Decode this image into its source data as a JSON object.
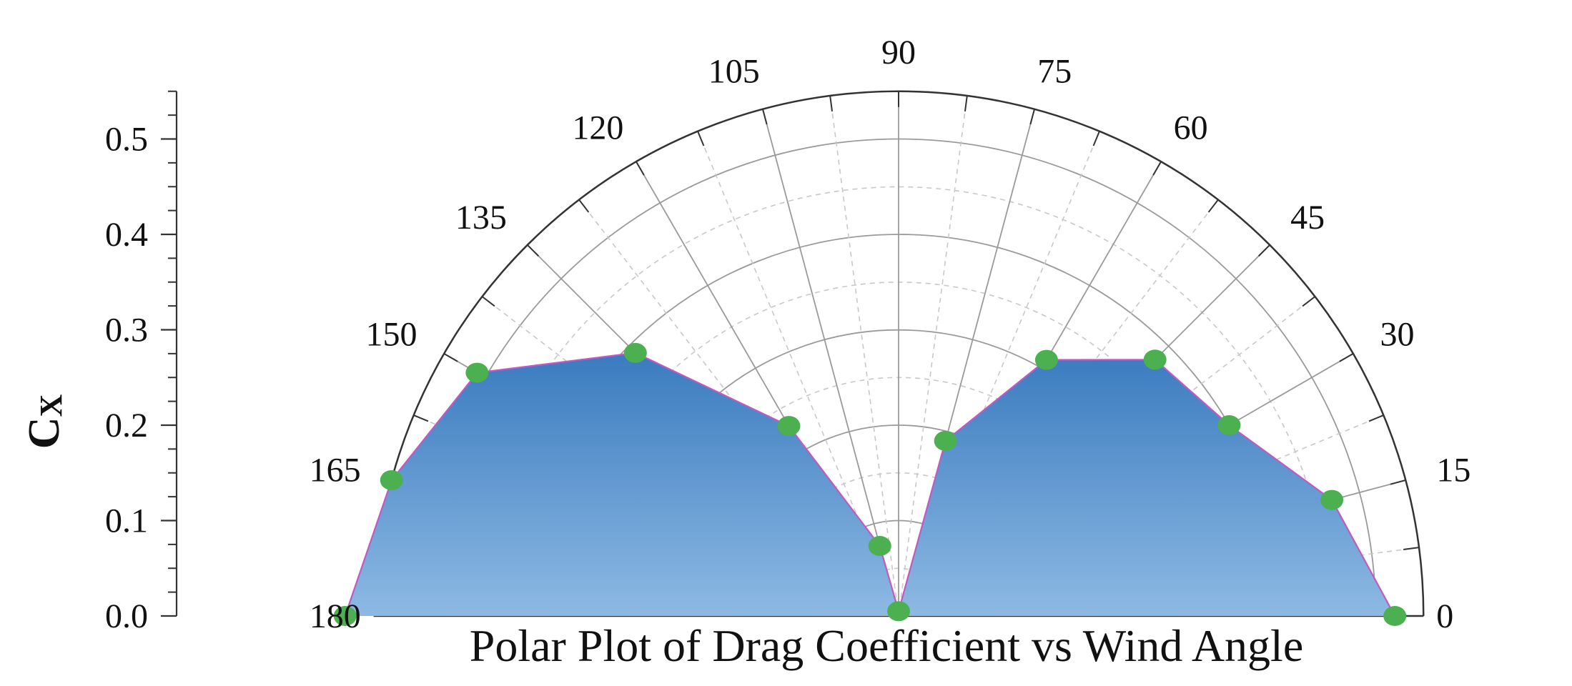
{
  "chart_data": {
    "type": "polar-area",
    "title": "Polar Plot of Drag Coefficient vs Wind Angle",
    "ylabel": "Cx",
    "ylabel_main": "C",
    "ylabel_sub": "X",
    "ylim": [
      0,
      0.55
    ],
    "y_ticks": [
      0.0,
      0.1,
      0.2,
      0.3,
      0.4,
      0.5
    ],
    "y_tick_labels": [
      "0.0",
      "0.1",
      "0.2",
      "0.3",
      "0.4",
      "0.5"
    ],
    "angle_ticks": [
      0,
      15,
      30,
      45,
      60,
      75,
      90,
      105,
      120,
      135,
      150,
      165,
      180
    ],
    "angle_tick_labels": [
      "0",
      "15",
      "30",
      "45",
      "60",
      "75",
      "90",
      "105",
      "120",
      "135",
      "150",
      "165",
      "180"
    ],
    "radial_grid_major": [
      0.1,
      0.2,
      0.3,
      0.4,
      0.5
    ],
    "radial_grid_minor": [
      0.05,
      0.15,
      0.25,
      0.35,
      0.45
    ],
    "series": [
      {
        "angles": [
          0,
          15,
          30,
          45,
          60,
          75,
          90,
          105,
          120,
          135,
          150,
          165,
          180
        ],
        "values": [
          0.52,
          0.47,
          0.4,
          0.38,
          0.31,
          0.19,
          0.005,
          0.076,
          0.23,
          0.39,
          0.51,
          0.55,
          0.58
        ]
      }
    ],
    "colors": {
      "fill_top": "#3a7bbf",
      "fill_bottom": "#8db9e3",
      "outline": "#c05ac0",
      "marker": "#4caf50",
      "grid_major": "#9a9a9a",
      "grid_minor": "#c8c8c8",
      "axis": "#333333"
    },
    "grid": true
  }
}
